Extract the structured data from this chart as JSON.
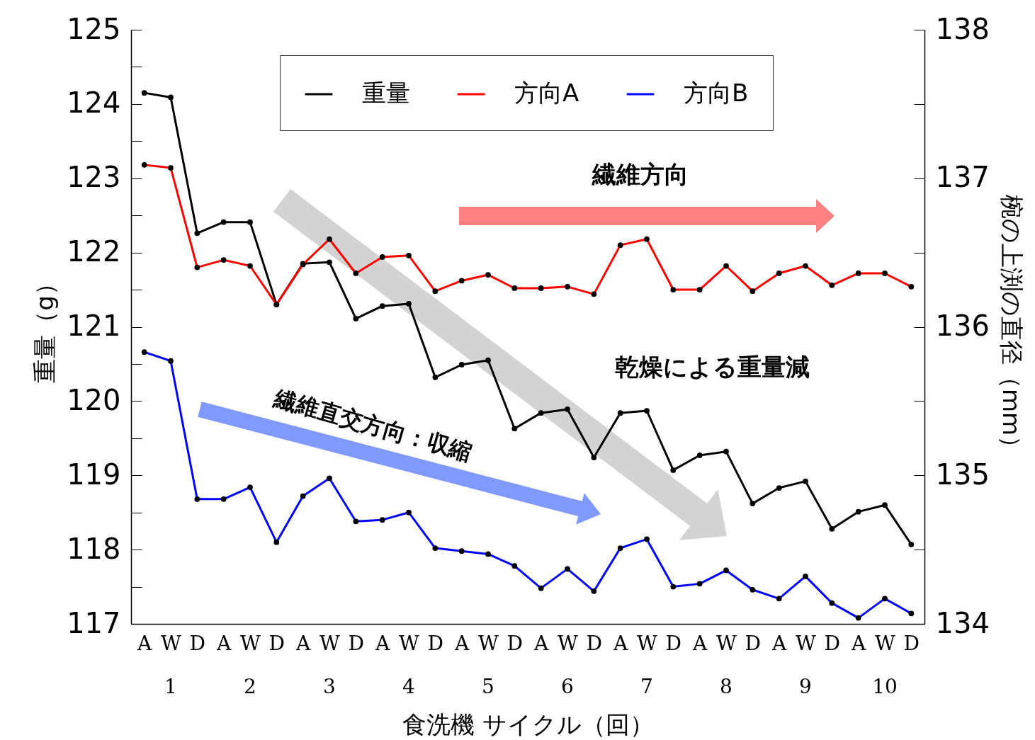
{
  "chart_data": {
    "type": "line",
    "xlabel": "食洗機 サイクル（回）",
    "ylabel": "重量（g）",
    "y2label": "椀の上渕の直径（mm）",
    "categories": [
      "A",
      "W",
      "D",
      "A",
      "W",
      "D",
      "A",
      "W",
      "D",
      "A",
      "W",
      "D",
      "A",
      "W",
      "D",
      "A",
      "W",
      "D",
      "A",
      "W",
      "D",
      "A",
      "W",
      "D",
      "A",
      "W",
      "D",
      "A",
      "W",
      "D"
    ],
    "series": [
      {
        "name": "重量",
        "color": "#000000",
        "values": [
          124.15,
          124.09,
          122.26,
          122.41,
          122.41,
          121.3,
          121.85,
          121.87,
          121.11,
          121.28,
          121.31,
          120.32,
          120.49,
          120.55,
          119.63,
          119.84,
          119.89,
          119.24,
          119.84,
          119.87,
          119.07,
          119.27,
          119.32,
          118.62,
          118.83,
          118.92,
          118.28,
          118.51,
          118.6,
          118.07
        ]
      },
      {
        "name": "方向A",
        "color": "#ff0000",
        "axis": "y2",
        "values": [
          137.09,
          137.07,
          136.4,
          136.45,
          136.41,
          136.15,
          136.42,
          136.59,
          136.36,
          136.47,
          136.48,
          136.24,
          136.31,
          136.35,
          136.26,
          136.26,
          136.27,
          136.22,
          136.55,
          136.59,
          136.25,
          136.25,
          136.41,
          136.24,
          136.36,
          136.41,
          136.28,
          136.36,
          136.36,
          136.27
        ]
      },
      {
        "name": "方向B",
        "color": "#0000ff",
        "axis": "y2",
        "values": [
          135.83,
          135.77,
          134.84,
          134.84,
          134.92,
          134.55,
          134.86,
          134.98,
          134.69,
          134.7,
          134.75,
          134.51,
          134.49,
          134.47,
          134.39,
          134.24,
          134.37,
          134.22,
          134.51,
          134.57,
          134.25,
          134.27,
          134.36,
          134.23,
          134.17,
          134.32,
          134.14,
          134.04,
          134.17,
          134.07
        ]
      }
    ],
    "ylim": [
      117,
      125
    ],
    "yticks": [
      117,
      {
        "value": 117.5,
        "label": null
      },
      118,
      {
        "value": 118.5,
        "label": null
      },
      119,
      {
        "value": 119.5,
        "label": null
      },
      120,
      {
        "value": 120.5,
        "label": null
      },
      121,
      {
        "value": 121.5,
        "label": null
      },
      122,
      {
        "value": 122.5,
        "label": null
      },
      123,
      {
        "value": 123.5,
        "label": null
      },
      124,
      {
        "value": 124.5,
        "label": null
      },
      125
    ],
    "y2lim": [
      134,
      138
    ],
    "y2ticks": [
      134,
      {
        "value": 134.5,
        "label": null
      },
      135,
      {
        "value": 135.5,
        "label": null
      },
      136,
      {
        "value": 136.5,
        "label": null
      },
      137,
      {
        "value": 137.5,
        "label": null
      },
      138
    ],
    "annotations": [
      "1",
      "2",
      "3",
      "4",
      "5",
      "6",
      "7",
      "8",
      "9",
      "10",
      "繊維方向",
      "乾燥による重量減",
      "繊維直交方向：収縮"
    ],
    "legend": "top",
    "marker": "circle",
    "line_style": "solid"
  }
}
